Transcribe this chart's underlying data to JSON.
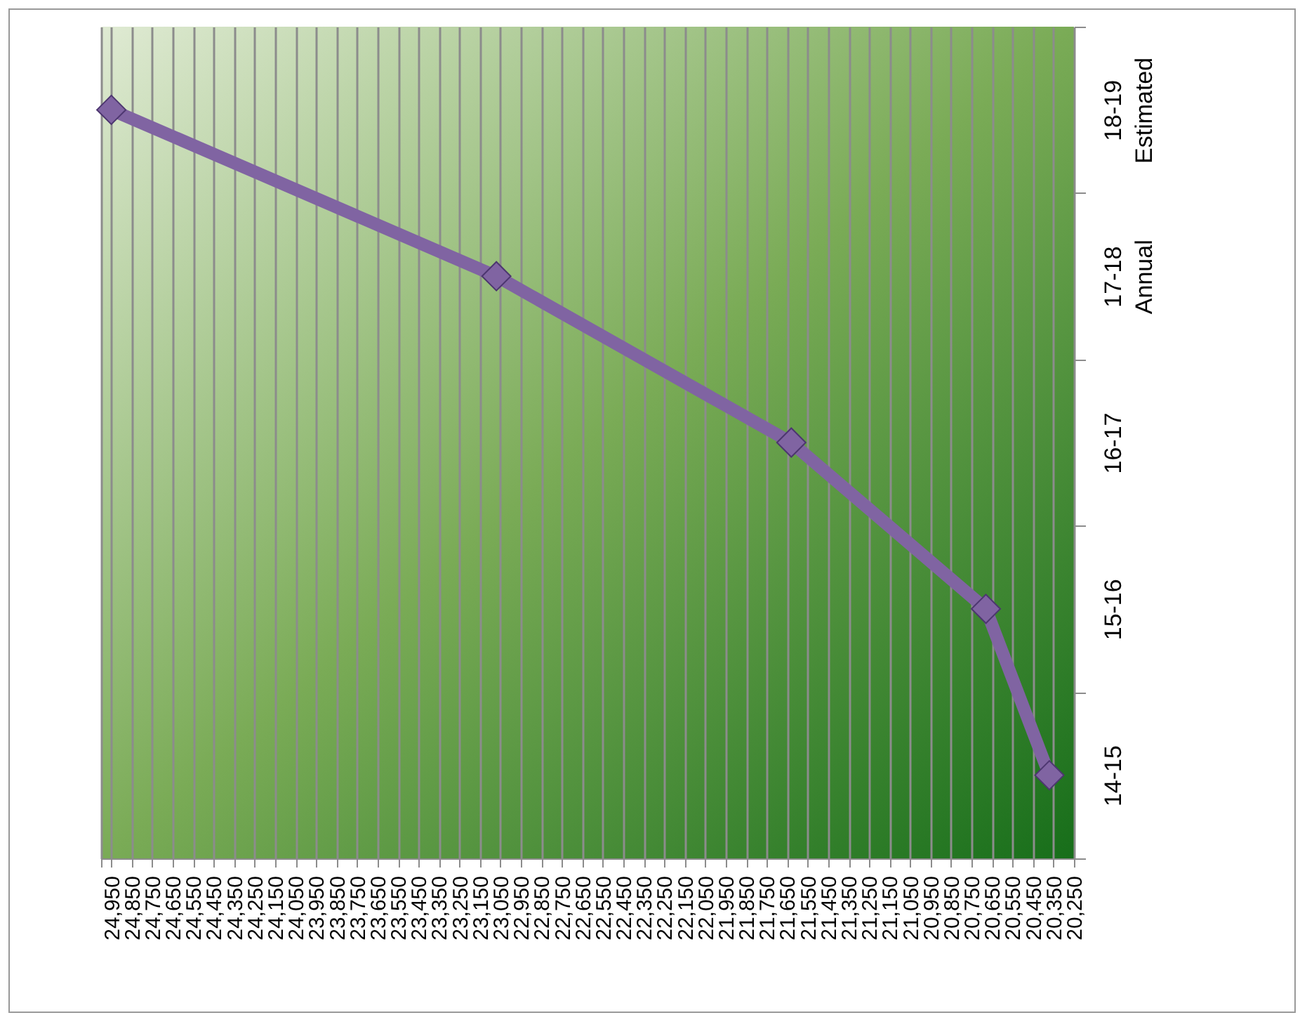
{
  "chart_data": {
    "type": "line",
    "orientation": "horizontal",
    "categories": [
      "18-19\nEstimated",
      "17-18\nAnnual",
      "16-17",
      "15-16",
      "14-15"
    ],
    "series": [
      {
        "color": "#8064a2",
        "values": [
          24950,
          23070,
          21630,
          20680,
          20370
        ]
      }
    ],
    "xlim": [
      25000,
      20250
    ],
    "xticks": [
      {
        "value": 25000,
        "label": null
      },
      {
        "value": 24950,
        "label": "24,950"
      },
      {
        "value": 24850,
        "label": "24,850"
      },
      {
        "value": 24750,
        "label": "24,750"
      },
      {
        "value": 24650,
        "label": "24,650"
      },
      {
        "value": 24550,
        "label": "24,550"
      },
      {
        "value": 24450,
        "label": "24,450"
      },
      {
        "value": 24350,
        "label": "24,350"
      },
      {
        "value": 24250,
        "label": "24,250"
      },
      {
        "value": 24150,
        "label": "24,150"
      },
      {
        "value": 24050,
        "label": "24,050"
      },
      {
        "value": 23950,
        "label": "23,950"
      },
      {
        "value": 23850,
        "label": "23,850"
      },
      {
        "value": 23750,
        "label": "23,750"
      },
      {
        "value": 23650,
        "label": "23,650"
      },
      {
        "value": 23550,
        "label": "23,550"
      },
      {
        "value": 23450,
        "label": "23,450"
      },
      {
        "value": 23350,
        "label": "23,350"
      },
      {
        "value": 23250,
        "label": "23,250"
      },
      {
        "value": 23150,
        "label": "23,150"
      },
      {
        "value": 23050,
        "label": "23,050"
      },
      {
        "value": 22950,
        "label": "22,950"
      },
      {
        "value": 22850,
        "label": "22,850"
      },
      {
        "value": 22750,
        "label": "22,750"
      },
      {
        "value": 22650,
        "label": "22,650"
      },
      {
        "value": 22550,
        "label": "22,550"
      },
      {
        "value": 22450,
        "label": "22,450"
      },
      {
        "value": 22350,
        "label": "22,350"
      },
      {
        "value": 22250,
        "label": "22,250"
      },
      {
        "value": 22150,
        "label": "22,150"
      },
      {
        "value": 22050,
        "label": "22,050"
      },
      {
        "value": 21950,
        "label": "21,950"
      },
      {
        "value": 21850,
        "label": "21,850"
      },
      {
        "value": 21750,
        "label": "21,750"
      },
      {
        "value": 21650,
        "label": "21,650"
      },
      {
        "value": 21550,
        "label": "21,550"
      },
      {
        "value": 21450,
        "label": "21,450"
      },
      {
        "value": 21350,
        "label": "21,350"
      },
      {
        "value": 21250,
        "label": "21,250"
      },
      {
        "value": 21150,
        "label": "21,150"
      },
      {
        "value": 21050,
        "label": "21,050"
      },
      {
        "value": 20950,
        "label": "20,950"
      },
      {
        "value": 20850,
        "label": "20,850"
      },
      {
        "value": 20750,
        "label": "20,750"
      },
      {
        "value": 20650,
        "label": "20,650"
      },
      {
        "value": 20550,
        "label": "20,550"
      },
      {
        "value": 20450,
        "label": "20,450"
      },
      {
        "value": 20350,
        "label": "20,350"
      },
      {
        "value": 20250,
        "label": "20,250"
      }
    ],
    "grid": "x",
    "marker": "diamond",
    "legend": false
  }
}
